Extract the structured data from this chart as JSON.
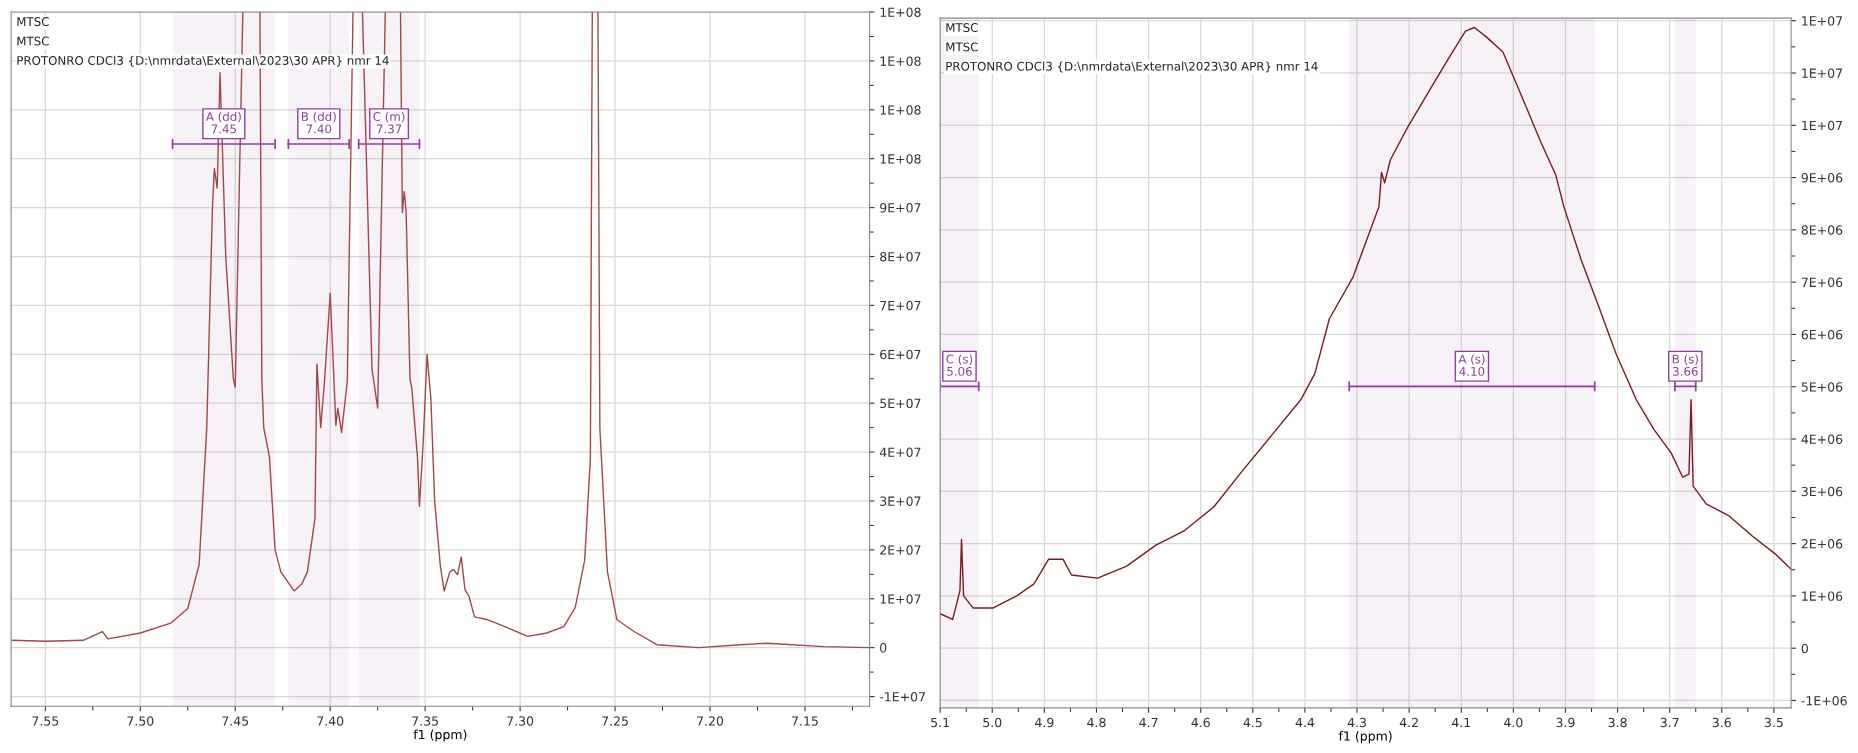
{
  "chart_data": [
    {
      "type": "line",
      "title": "MTSC",
      "annotations": [
        "MTSC",
        "PROTONRO CDCl3 {D:\\nmrdata\\External\\2023\\30 APR} nmr 14"
      ],
      "xlabel": "f1 (ppm)",
      "xlim": [
        7.568,
        7.116
      ],
      "ylim": [
        -12000000,
        130000000
      ],
      "xticks": [
        {
          "value": 7.55,
          "label": "7.55"
        },
        {
          "value": 7.5,
          "label": "7.50"
        },
        {
          "value": 7.45,
          "label": "7.45"
        },
        {
          "value": 7.4,
          "label": "7.40"
        },
        {
          "value": 7.35,
          "label": "7.35"
        },
        {
          "value": 7.3,
          "label": "7.30"
        },
        {
          "value": 7.25,
          "label": "7.25"
        },
        {
          "value": 7.2,
          "label": "7.20"
        },
        {
          "value": 7.15,
          "label": "7.15"
        },
        {
          "value": 7.525,
          "label": null
        },
        {
          "value": 7.475,
          "label": null
        },
        {
          "value": 7.425,
          "label": null
        },
        {
          "value": 7.375,
          "label": null
        },
        {
          "value": 7.325,
          "label": null
        },
        {
          "value": 7.275,
          "label": null
        },
        {
          "value": 7.225,
          "label": null
        },
        {
          "value": 7.175,
          "label": null
        },
        {
          "value": 7.125,
          "label": null
        }
      ],
      "yticks": [
        {
          "value": -10000000,
          "label": "-1E+07"
        },
        0,
        {
          "value": 10000000,
          "label": "1E+07"
        },
        {
          "value": 20000000,
          "label": "2E+07"
        },
        {
          "value": 30000000,
          "label": "3E+07"
        },
        {
          "value": 40000000,
          "label": "4E+07"
        },
        {
          "value": 50000000,
          "label": "5E+07"
        },
        {
          "value": 60000000,
          "label": "6E+07"
        },
        {
          "value": 70000000,
          "label": "7E+07"
        },
        {
          "value": 80000000,
          "label": "8E+07"
        },
        {
          "value": 90000000,
          "label": "9E+07"
        },
        {
          "value": 100000000,
          "label": "1E+08"
        },
        {
          "value": 110000000,
          "label": "1E+08"
        },
        {
          "value": 120000000,
          "label": "1E+08"
        },
        {
          "value": 130000000,
          "label": "1E+08"
        },
        {
          "value": -5000000,
          "label": null
        },
        {
          "value": 5000000,
          "label": null
        },
        {
          "value": 15000000,
          "label": null
        },
        {
          "value": 25000000,
          "label": null
        },
        {
          "value": 35000000,
          "label": null
        },
        {
          "value": 45000000,
          "label": null
        },
        {
          "value": 55000000,
          "label": null
        },
        {
          "value": 65000000,
          "label": null
        },
        {
          "value": 75000000,
          "label": null
        },
        {
          "value": 85000000,
          "label": null
        },
        {
          "value": 95000000,
          "label": null
        },
        {
          "value": 105000000,
          "label": null
        },
        {
          "value": 115000000,
          "label": null
        },
        {
          "value": 125000000,
          "label": null
        }
      ],
      "grid": true,
      "bands": [
        {
          "axis": "x",
          "from": 7.483,
          "to": 7.429,
          "label": "A (dd)\n7.45",
          "color": "#8e3f9e"
        },
        {
          "axis": "x",
          "from": 7.422,
          "to": 7.39,
          "label": "B (dd)\n7.40",
          "color": "#8e3f9e"
        },
        {
          "axis": "x",
          "from": 7.385,
          "to": 7.353,
          "label": "C (m)\n7.37",
          "color": "#8e3f9e"
        }
      ],
      "series": [
        {
          "color": "#a04848",
          "x": [
            7.568,
            7.55,
            7.53,
            7.52,
            7.517,
            7.5,
            7.484,
            7.475,
            7.469,
            7.465,
            7.462,
            7.461,
            7.4595,
            7.458,
            7.455,
            7.451,
            7.45,
            7.446,
            7.441,
            7.437,
            7.436,
            7.435,
            7.432,
            7.429,
            7.426,
            7.419,
            7.415,
            7.412,
            7.408,
            7.407,
            7.405,
            7.403,
            7.4,
            7.397,
            7.396,
            7.394,
            7.391,
            7.388,
            7.3855,
            7.383,
            7.378,
            7.375,
            7.371,
            7.367,
            7.363,
            7.362,
            7.361,
            7.36,
            7.358,
            7.357,
            7.354,
            7.353,
            7.351,
            7.349,
            7.347,
            7.345,
            7.342,
            7.34,
            7.337,
            7.335,
            7.333,
            7.331,
            7.329,
            7.327,
            7.324,
            7.317,
            7.308,
            7.296,
            7.286,
            7.277,
            7.271,
            7.266,
            7.263,
            7.262,
            7.2605,
            7.259,
            7.258,
            7.254,
            7.249,
            7.24,
            7.228,
            7.206,
            7.184,
            7.17,
            7.14,
            7.116
          ],
          "values": [
            1500000,
            1300000,
            1500000,
            3300000,
            1800000,
            3000000,
            5000000,
            8000000,
            17000000,
            45000000,
            90000000,
            98000000,
            94000000,
            117600000,
            80000000,
            55000000,
            53300000,
            130000000,
            null,
            130000000,
            55000000,
            45000000,
            39000000,
            20000000,
            15500000,
            11600000,
            13000000,
            15500000,
            26500000,
            58000000,
            45000000,
            54500000,
            72500000,
            45400000,
            49000000,
            44000000,
            54500000,
            130000000,
            null,
            130000000,
            57000000,
            49000000,
            130000000,
            null,
            130000000,
            89000000,
            93300000,
            89000000,
            55000000,
            53000000,
            38700000,
            28900000,
            42300000,
            60000000,
            51000000,
            30000000,
            16700000,
            11600000,
            15500000,
            16000000,
            14900000,
            18500000,
            11800000,
            10600000,
            6300000,
            5700000,
            4300000,
            2300000,
            3000000,
            4300000,
            8200000,
            17900000,
            38700000,
            130000000,
            null,
            130000000,
            44800000,
            15500000,
            5700000,
            3300000,
            600000,
            0,
            600000,
            900000,
            200000,
            0
          ]
        }
      ]
    },
    {
      "type": "line",
      "title": "MTSC",
      "annotations": [
        "MTSC",
        "PROTONRO CDCl3 {D:\\nmrdata\\External\\2023\\30 APR} nmr 14"
      ],
      "xlabel": "f1 (ppm)",
      "xlim": [
        5.1,
        3.467
      ],
      "ylim": [
        -1140000,
        12050000
      ],
      "xticks": [
        5.1,
        {
          "value": 5.0,
          "label": "5.0"
        },
        4.9,
        4.8,
        4.7,
        4.6,
        4.5,
        4.4,
        4.3,
        4.2,
        4.1,
        {
          "value": 4.0,
          "label": "4.0"
        },
        3.9,
        3.8,
        3.7,
        3.6,
        3.5,
        {
          "value": 5.05,
          "label": null
        },
        {
          "value": 4.95,
          "label": null
        },
        {
          "value": 4.85,
          "label": null
        },
        {
          "value": 4.75,
          "label": null
        },
        {
          "value": 4.65,
          "label": null
        },
        {
          "value": 4.55,
          "label": null
        },
        {
          "value": 4.45,
          "label": null
        },
        {
          "value": 4.35,
          "label": null
        },
        {
          "value": 4.25,
          "label": null
        },
        {
          "value": 4.15,
          "label": null
        },
        {
          "value": 4.05,
          "label": null
        },
        {
          "value": 3.95,
          "label": null
        },
        {
          "value": 3.85,
          "label": null
        },
        {
          "value": 3.75,
          "label": null
        },
        {
          "value": 3.65,
          "label": null
        },
        {
          "value": 3.55,
          "label": null
        }
      ],
      "yticks": [
        {
          "value": -1000000,
          "label": "-1E+06"
        },
        0,
        {
          "value": 1000000,
          "label": "1E+06"
        },
        {
          "value": 2000000,
          "label": "2E+06"
        },
        {
          "value": 3000000,
          "label": "3E+06"
        },
        {
          "value": 4000000,
          "label": "4E+06"
        },
        {
          "value": 5000000,
          "label": "5E+06"
        },
        {
          "value": 6000000,
          "label": "6E+06"
        },
        {
          "value": 7000000,
          "label": "7E+06"
        },
        {
          "value": 8000000,
          "label": "8E+06"
        },
        {
          "value": 9000000,
          "label": "9E+06"
        },
        {
          "value": 10000000,
          "label": "1E+07"
        },
        {
          "value": 11000000,
          "label": "1E+07"
        },
        {
          "value": 12000000,
          "label": "1E+07"
        },
        {
          "value": -500000,
          "label": null
        },
        {
          "value": 500000,
          "label": null
        },
        {
          "value": 1500000,
          "label": null
        },
        {
          "value": 2500000,
          "label": null
        },
        {
          "value": 3500000,
          "label": null
        },
        {
          "value": 4500000,
          "label": null
        },
        {
          "value": 5500000,
          "label": null
        },
        {
          "value": 6500000,
          "label": null
        },
        {
          "value": 7500000,
          "label": null
        },
        {
          "value": 8500000,
          "label": null
        },
        {
          "value": 9500000,
          "label": null
        },
        {
          "value": 10500000,
          "label": null
        },
        {
          "value": 11500000,
          "label": null
        }
      ],
      "grid": true,
      "bands": [
        {
          "axis": "x",
          "from": 5.1,
          "to": 5.026,
          "label": "C (s)\n5.06",
          "color": "#8e3f9e"
        },
        {
          "axis": "x",
          "from": 4.315,
          "to": 3.844,
          "label": "A (s)\n4.10",
          "color": "#8e3f9e"
        },
        {
          "axis": "x",
          "from": 3.69,
          "to": 3.65,
          "label": "B (s)\n3.66",
          "color": "#8e3f9e"
        }
      ],
      "series": [
        {
          "color": "#7a1c1c",
          "x": [
            5.1,
            5.076,
            5.062,
            5.059,
            5.055,
            5.037,
            4.998,
            4.953,
            4.92,
            4.892,
            4.864,
            4.848,
            4.798,
            4.742,
            4.686,
            4.631,
            4.575,
            4.52,
            4.464,
            4.408,
            4.381,
            4.353,
            4.308,
            4.258,
            4.253,
            4.247,
            4.236,
            4.203,
            4.159,
            4.126,
            4.092,
            4.075,
            4.053,
            4.02,
            4.003,
            3.98,
            3.947,
            3.919,
            3.903,
            3.87,
            3.836,
            3.803,
            3.786,
            3.764,
            3.73,
            3.697,
            3.675,
            3.663,
            3.659,
            3.655,
            3.63,
            3.586,
            3.541,
            3.497,
            3.467
          ],
          "values": [
            660000,
            550000,
            1100000,
            2080000,
            1000000,
            770000,
            770000,
            1000000,
            1230000,
            1700000,
            1700000,
            1400000,
            1340000,
            1570000,
            1970000,
            2250000,
            2700000,
            3390000,
            4070000,
            4750000,
            5250000,
            6300000,
            7090000,
            8440000,
            9100000,
            8900000,
            9340000,
            9960000,
            10700000,
            11250000,
            11800000,
            11870000,
            11700000,
            11400000,
            11000000,
            10460000,
            9670000,
            9060000,
            8440000,
            7430000,
            6530000,
            5630000,
            5250000,
            4750000,
            4180000,
            3730000,
            3270000,
            3330000,
            4750000,
            3100000,
            2760000,
            2530000,
            2140000,
            1800000,
            1510000
          ]
        }
      ]
    }
  ]
}
